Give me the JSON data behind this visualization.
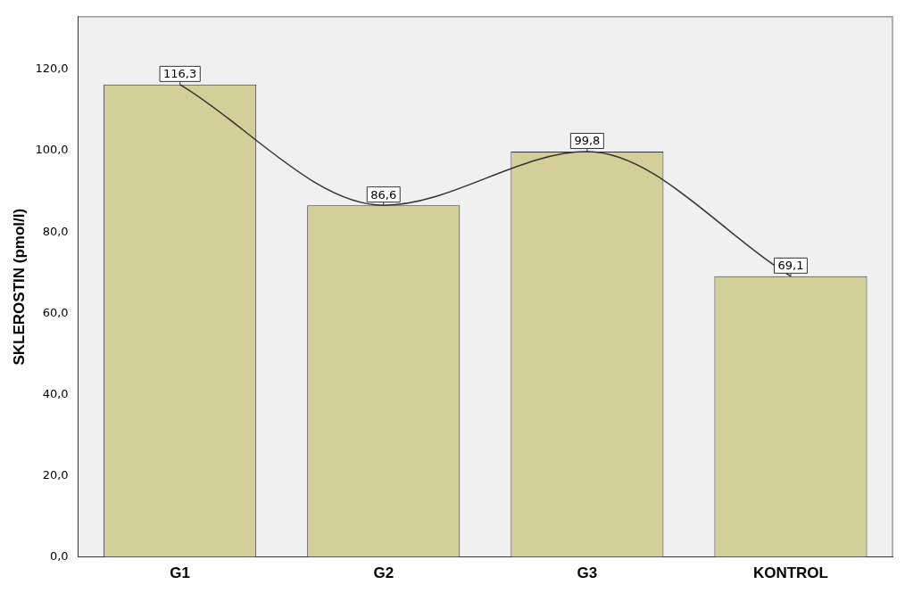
{
  "chart_data": {
    "type": "bar",
    "ylabel": "SKLEROSTIN (pmol/l)",
    "categories": [
      "G1",
      "G2",
      "G3",
      "KONTROL"
    ],
    "series": [
      {
        "color": "#d4cf99",
        "values": [
          116.3,
          86.6,
          99.8,
          69.1
        ],
        "value_labels": [
          "116,3",
          "86,6",
          "99,8",
          "69,1"
        ]
      },
      {
        "type": "line",
        "color": "#333333",
        "values": [
          116.3,
          86.6,
          99.8,
          69.1
        ]
      }
    ],
    "ylim": [
      0,
      133
    ],
    "yticks": [
      {
        "value": 0,
        "label": "0,0"
      },
      {
        "value": 20,
        "label": "20,0"
      },
      {
        "value": 40,
        "label": "40,0"
      },
      {
        "value": 60,
        "label": "60,0"
      },
      {
        "value": 80,
        "label": "80,0"
      },
      {
        "value": 100,
        "label": "100,0"
      },
      {
        "value": 120,
        "label": "120,0"
      }
    ],
    "grid": false,
    "legend": false,
    "marker": "none",
    "line_style": "solid"
  }
}
